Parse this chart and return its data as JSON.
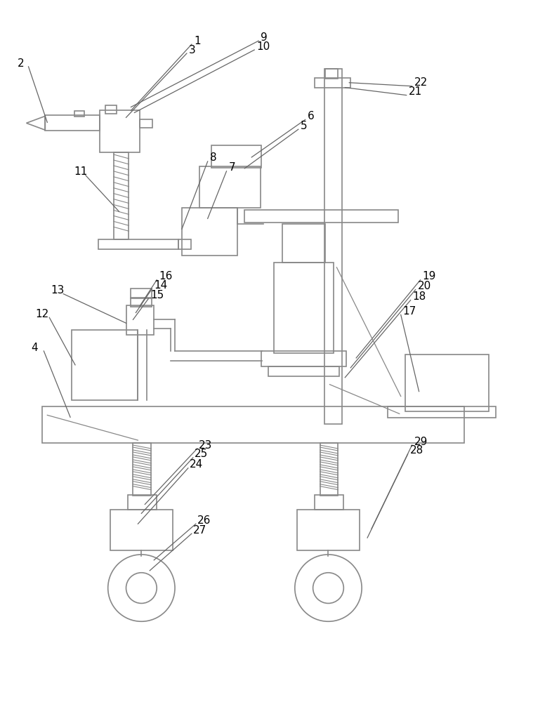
{
  "line_color": "#888888",
  "text_color": "#000000",
  "bg_color": "#ffffff",
  "line_width": 1.2,
  "fig_width": 7.86,
  "fig_height": 10.0
}
